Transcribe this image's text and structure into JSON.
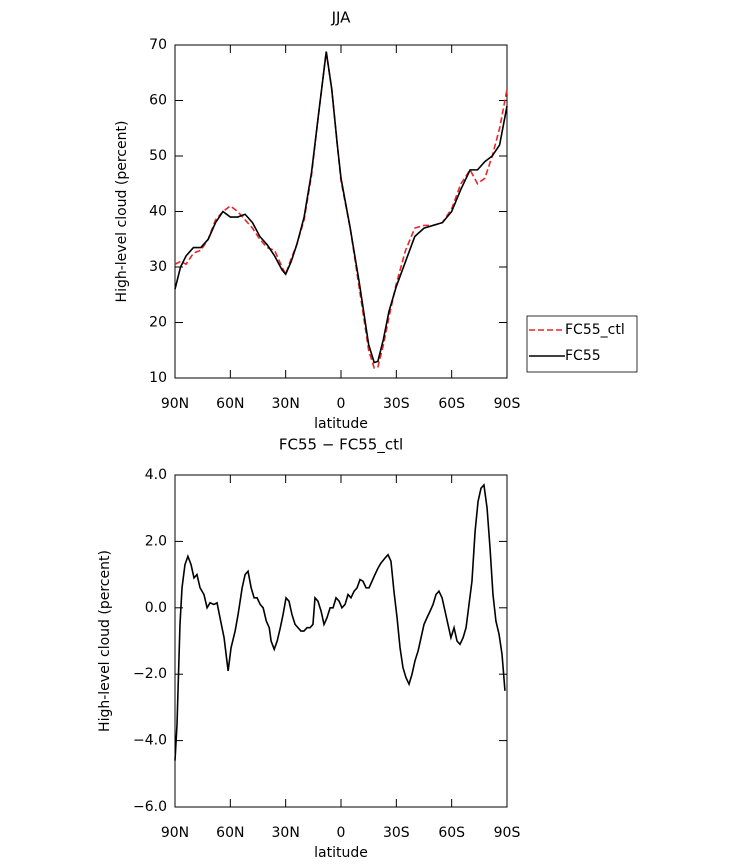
{
  "chart_data": [
    {
      "type": "line",
      "title": "JJA",
      "xlabel": "latitude",
      "ylabel": "High-level cloud (percent)",
      "x": [
        90,
        87,
        84,
        80,
        76,
        72,
        68,
        64,
        60,
        56,
        52,
        48,
        44,
        40,
        36,
        32,
        30,
        27,
        24,
        20,
        16,
        12,
        8,
        5,
        2,
        0,
        -5,
        -10,
        -15,
        -18,
        -20,
        -23,
        -26,
        -30,
        -35,
        -40,
        -45,
        -50,
        -55,
        -60,
        -65,
        -70,
        -74,
        -78,
        -82,
        -86,
        -90
      ],
      "series": [
        {
          "name": "FC55_ctl",
          "color": "#e8262a",
          "dash": true,
          "values": [
            30.5,
            31,
            30.5,
            32.5,
            33,
            35,
            38.5,
            40,
            41,
            40,
            38.5,
            37,
            35,
            33.5,
            33,
            30,
            28.7,
            31.5,
            34,
            38.5,
            46.5,
            58,
            68.8,
            62,
            52,
            45.5,
            37,
            26,
            15,
            11.8,
            12,
            16,
            21,
            27,
            33,
            37,
            37.5,
            37.5,
            38,
            40.5,
            45,
            47.5,
            45,
            46,
            50,
            55,
            62
          ]
        },
        {
          "name": "FC55",
          "color": "#000000",
          "dash": false,
          "values": [
            26,
            30,
            32,
            33.5,
            33.5,
            35,
            38,
            40,
            39,
            39,
            39.5,
            38,
            35.5,
            34,
            32,
            29.5,
            28.7,
            31,
            34,
            39,
            47,
            58,
            68.8,
            62,
            52,
            46,
            37,
            27,
            16,
            12.8,
            13,
            17,
            22,
            26.5,
            31,
            35.5,
            37,
            37.5,
            38,
            40,
            44,
            47.5,
            47.5,
            49,
            50,
            52,
            59
          ]
        }
      ],
      "xlim": [
        90,
        -90
      ],
      "xticks": [
        {
          "value": 90,
          "label": "90N"
        },
        {
          "value": 60,
          "label": "60N"
        },
        {
          "value": 30,
          "label": "30N"
        },
        0,
        {
          "value": -30,
          "label": "30S"
        },
        {
          "value": -60,
          "label": "60S"
        },
        {
          "value": -90,
          "label": "90S"
        }
      ],
      "ylim": [
        10,
        70
      ],
      "yticks": [
        10,
        20,
        30,
        40,
        50,
        60,
        70
      ],
      "legend": "right"
    },
    {
      "type": "line",
      "title": "FC55 − FC55_ctl",
      "xlabel": "latitude",
      "ylabel": "High-level cloud (percent)",
      "x": [
        90,
        88.9,
        87.3,
        86.2,
        84.6,
        83.0,
        81.3,
        79.7,
        78.1,
        76.4,
        74.3,
        72.6,
        71.0,
        68.9,
        67.2,
        65.6,
        63.4,
        61.2,
        59.6,
        57.4,
        55.8,
        53.6,
        52.0,
        50.4,
        48.7,
        47.1,
        45.5,
        43.8,
        42.2,
        40.5,
        38.9,
        37.9,
        36.2,
        34.6,
        32.9,
        31.4,
        29.8,
        28.2,
        26.6,
        24.9,
        23.3,
        21.7,
        20.1,
        18.4,
        16.8,
        15.2,
        14.1,
        12.5,
        10.8,
        9.2,
        7.6,
        5.9,
        4.3,
        2.7,
        1.0,
        -0.5,
        -2.2,
        -3.8,
        -5.4,
        -7.1,
        -8.7,
        -10.3,
        -11.9,
        -13.6,
        -15.2,
        -16.8,
        -18.4,
        -20.1,
        -21.7,
        -23.9,
        -25.5,
        -27.1,
        -28.7,
        -30.4,
        -32.0,
        -33.6,
        -35.2,
        -36.9,
        -38.5,
        -40.1,
        -41.8,
        -43.4,
        -45.0,
        -46.6,
        -48.3,
        -49.9,
        -51.5,
        -53.1,
        -54.8,
        -56.4,
        -58.0,
        -59.6,
        -61.3,
        -62.9,
        -64.5,
        -66.2,
        -67.8,
        -69.4,
        -71.0,
        -72.7,
        -74.3,
        -75.9,
        -77.5,
        -79.2,
        -80.8,
        -82.4,
        -84.0,
        -85.7,
        -87.3,
        -88.9
      ],
      "series": [
        {
          "name": "FC55 − FC55_ctl",
          "color": "#000000",
          "dash": false,
          "values": [
            -4.6,
            -3.5,
            -0.5,
            0.6,
            1.3,
            1.55,
            1.3,
            0.9,
            1.0,
            0.6,
            0.4,
            0.0,
            0.15,
            0.1,
            0.15,
            -0.3,
            -0.9,
            -1.9,
            -1.2,
            -0.7,
            -0.2,
            0.6,
            1.0,
            1.1,
            0.6,
            0.3,
            0.3,
            0.1,
            0.0,
            -0.4,
            -0.6,
            -1.0,
            -1.25,
            -1.0,
            -0.6,
            -0.2,
            0.3,
            0.2,
            -0.2,
            -0.5,
            -0.6,
            -0.7,
            -0.7,
            -0.6,
            -0.6,
            -0.5,
            0.3,
            0.2,
            -0.1,
            -0.5,
            -0.3,
            0.0,
            0.0,
            0.3,
            0.2,
            0.0,
            0.1,
            0.4,
            0.3,
            0.5,
            0.6,
            0.85,
            0.8,
            0.6,
            0.6,
            0.8,
            1.0,
            1.2,
            1.35,
            1.5,
            1.6,
            1.4,
            0.5,
            -0.3,
            -1.2,
            -1.8,
            -2.1,
            -2.3,
            -2.0,
            -1.6,
            -1.3,
            -0.9,
            -0.5,
            -0.3,
            -0.1,
            0.1,
            0.4,
            0.5,
            0.3,
            -0.1,
            -0.5,
            -0.9,
            -0.6,
            -1.0,
            -1.1,
            -0.9,
            -0.6,
            0.1,
            0.8,
            2.3,
            3.2,
            3.6,
            3.7,
            3.0,
            1.8,
            0.4,
            -0.4,
            -0.8,
            -1.4,
            -2.5
          ]
        }
      ],
      "xlim": [
        90,
        -90
      ],
      "xticks": [
        {
          "value": 90,
          "label": "90N"
        },
        {
          "value": 60,
          "label": "60N"
        },
        {
          "value": 30,
          "label": "30N"
        },
        0,
        {
          "value": -30,
          "label": "30S"
        },
        {
          "value": -60,
          "label": "60S"
        },
        {
          "value": -90,
          "label": "90S"
        }
      ],
      "ylim": [
        -6,
        4
      ],
      "yticks": [
        {
          "value": -6,
          "label": "−6.0"
        },
        {
          "value": -4,
          "label": "−4.0"
        },
        {
          "value": -2,
          "label": "−2.0"
        },
        {
          "value": 0,
          "label": "0.0"
        },
        {
          "value": 2,
          "label": "2.0"
        },
        {
          "value": 4,
          "label": "4.0"
        }
      ]
    }
  ]
}
